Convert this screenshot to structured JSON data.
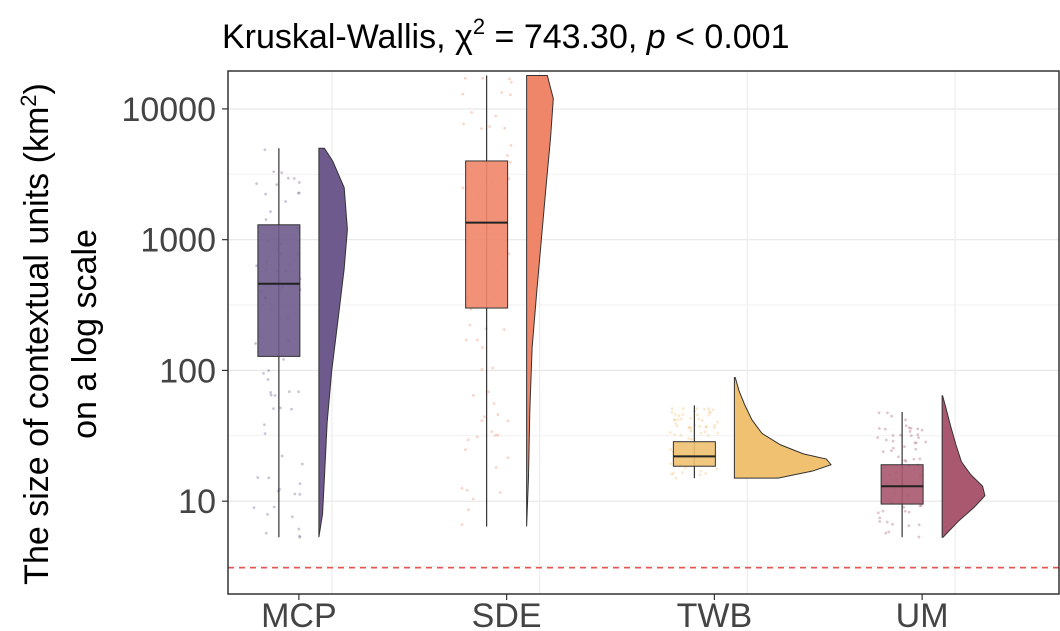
{
  "chart_data": {
    "type": "box",
    "title_prefix": "Kruskal-Wallis, ",
    "title_chi": "χ",
    "title_sup": "2",
    "title_mid": " = 743.30, ",
    "title_p": "p",
    "title_end": " < 0.001",
    "ylabel_line1_text": "The size of contextual units (km",
    "ylabel_line1_sup": "2",
    "ylabel_line1_close": ")",
    "ylabel_line2": "on a log scale",
    "yscale": "log",
    "ylim": [
      1.95,
      19500
    ],
    "yticks": [
      10,
      100,
      1000,
      10000
    ],
    "ytick_labels": [
      "10",
      "100",
      "1000",
      "10000"
    ],
    "reference_line": {
      "y": 3.1,
      "color": "#e8544e"
    },
    "grid": true,
    "categories": [
      "MCP",
      "SDE",
      "TWB",
      "UM"
    ],
    "colors": {
      "MCP": "#6e5a8c",
      "SDE": "#ef8669",
      "TWB": "#f0c171",
      "UM": "#a9586f"
    },
    "boxes": [
      {
        "category": "MCP",
        "min": 5.3,
        "q1": 128,
        "median": 460,
        "q3": 1300,
        "max": 5000
      },
      {
        "category": "SDE",
        "min": 6.4,
        "q1": 300,
        "median": 1350,
        "q3": 4000,
        "max": 18000
      },
      {
        "category": "TWB",
        "min": 15,
        "q1": 18.5,
        "median": 22,
        "q3": 28.5,
        "max": 54
      },
      {
        "category": "UM",
        "min": 5.3,
        "q1": 9.5,
        "median": 13,
        "q3": 19,
        "max": 48
      }
    ],
    "densities": [
      {
        "category": "MCP",
        "min": 5.3,
        "max": 5000,
        "profile": [
          [
            5.3,
            0.0
          ],
          [
            8,
            0.08
          ],
          [
            15,
            0.12
          ],
          [
            40,
            0.18
          ],
          [
            100,
            0.28
          ],
          [
            250,
            0.42
          ],
          [
            600,
            0.55
          ],
          [
            1200,
            0.62
          ],
          [
            2500,
            0.55
          ],
          [
            4000,
            0.3
          ],
          [
            5000,
            0.12
          ]
        ]
      },
      {
        "category": "SDE",
        "min": 6.4,
        "max": 18000,
        "profile": [
          [
            6.4,
            0.0
          ],
          [
            15,
            0.04
          ],
          [
            50,
            0.07
          ],
          [
            150,
            0.12
          ],
          [
            400,
            0.22
          ],
          [
            1000,
            0.32
          ],
          [
            2500,
            0.42
          ],
          [
            6000,
            0.52
          ],
          [
            12000,
            0.58
          ],
          [
            18000,
            0.45
          ]
        ]
      },
      {
        "category": "TWB",
        "min": 15,
        "max": 88,
        "profile": [
          [
            15,
            0.95
          ],
          [
            17,
            1.7
          ],
          [
            19,
            2.1
          ],
          [
            21,
            2.0
          ],
          [
            23,
            1.5
          ],
          [
            27,
            1.0
          ],
          [
            33,
            0.6
          ],
          [
            42,
            0.38
          ],
          [
            55,
            0.22
          ],
          [
            70,
            0.1
          ],
          [
            88,
            0.02
          ]
        ]
      },
      {
        "category": "UM",
        "min": 5.3,
        "max": 64,
        "profile": [
          [
            5.3,
            0.02
          ],
          [
            7,
            0.35
          ],
          [
            9,
            0.7
          ],
          [
            11,
            0.93
          ],
          [
            13,
            0.88
          ],
          [
            16,
            0.62
          ],
          [
            20,
            0.42
          ],
          [
            27,
            0.3
          ],
          [
            38,
            0.18
          ],
          [
            52,
            0.08
          ],
          [
            64,
            0.01
          ]
        ]
      }
    ]
  }
}
